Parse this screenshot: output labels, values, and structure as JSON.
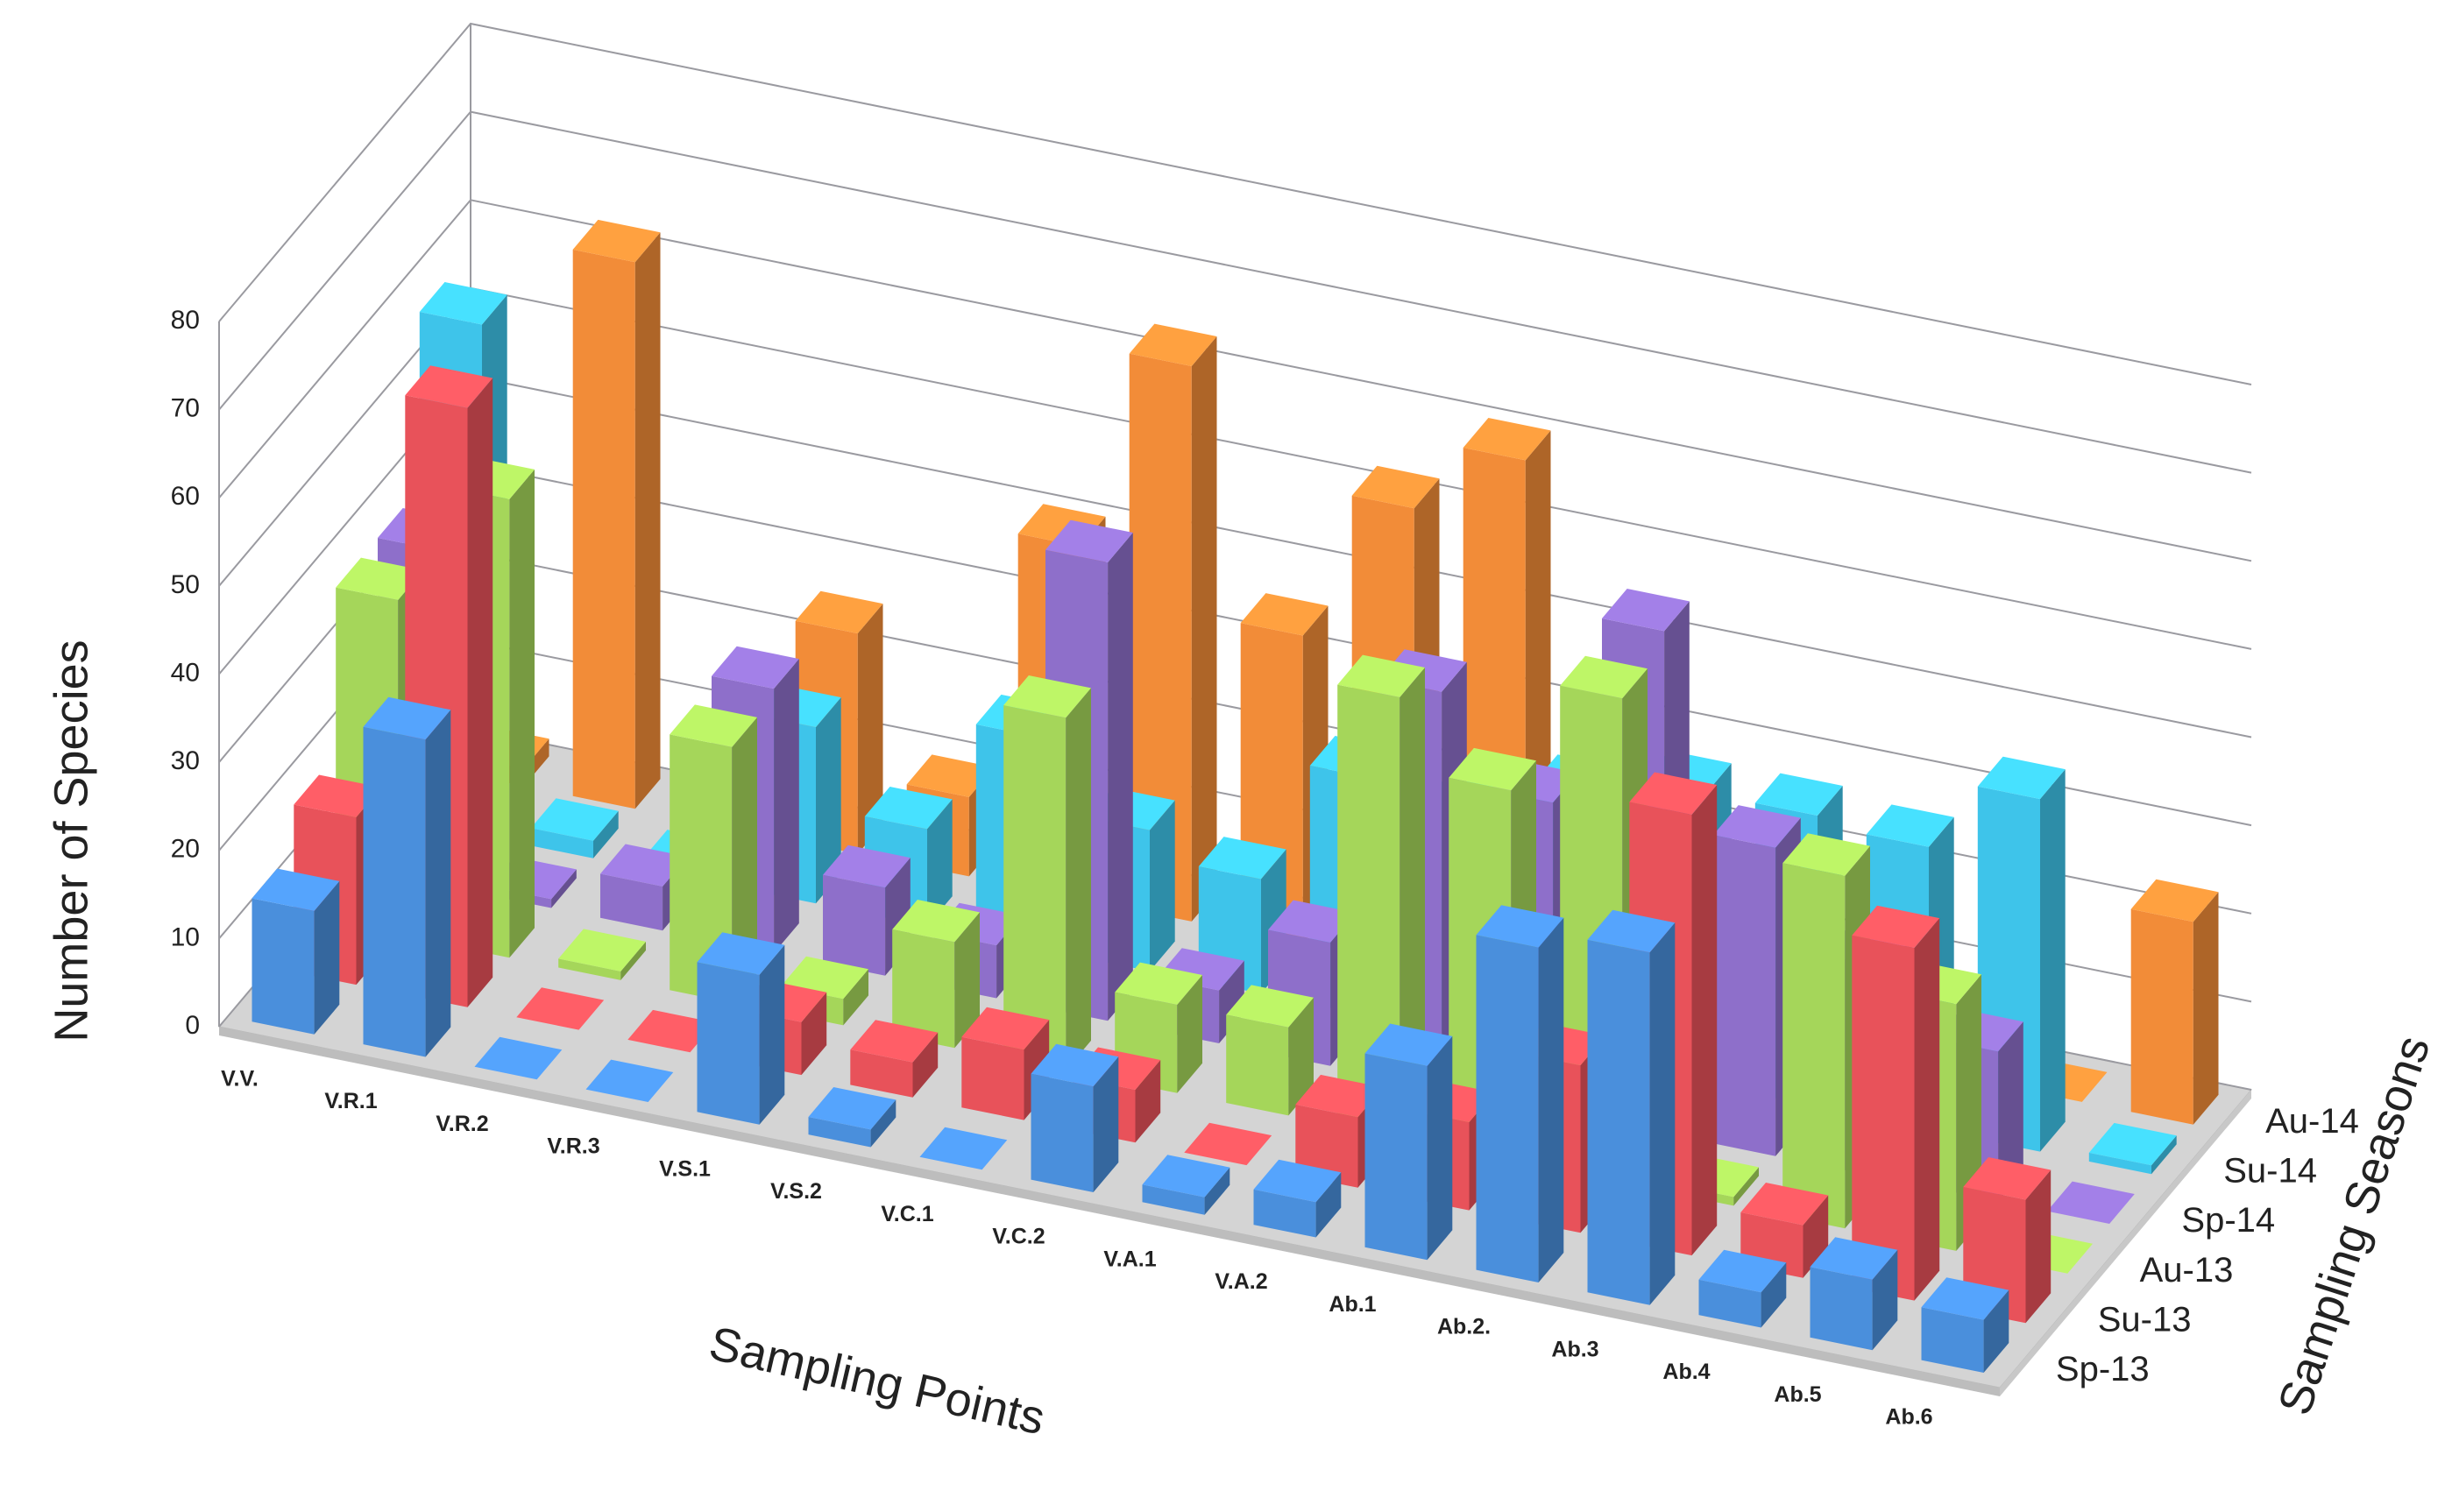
{
  "chart_data": {
    "type": "bar3d",
    "y_label": "Number of Species",
    "x_label": "Sampling Points",
    "z_label": "Sampling Seasons",
    "categories": [
      "V.V.",
      "V.R.1",
      "V.R.2",
      "V.R.3",
      "V.S.1",
      "V.S.2",
      "V.C.1",
      "V.C.2",
      "V.A.1",
      "V.A.2",
      "Ab.1",
      "Ab.2.",
      "Ab.3",
      "Ab.4",
      "Ab.5",
      "Ab.6"
    ],
    "series": [
      {
        "name": "Sp-13",
        "color": "#4a8fdc",
        "values": [
          14,
          36,
          0,
          0,
          17,
          2,
          0,
          12,
          2,
          4,
          22,
          38,
          40,
          4,
          8,
          6
        ]
      },
      {
        "name": "Su-13",
        "color": "#e8525a",
        "values": [
          19,
          68,
          0,
          0,
          6,
          4,
          8,
          6,
          0,
          8,
          10,
          19,
          50,
          6,
          40,
          14
        ]
      },
      {
        "name": "Au-13",
        "color": "#a5d65a",
        "values": [
          38,
          52,
          1,
          29,
          3,
          12,
          40,
          10,
          10,
          50,
          42,
          55,
          1,
          40,
          28,
          0
        ]
      },
      {
        "name": "Sp-14",
        "color": "#8e6fca",
        "values": [
          38,
          1,
          5,
          30,
          10,
          6,
          52,
          6,
          14,
          45,
          35,
          57,
          35,
          24,
          17,
          0
        ]
      },
      {
        "name": "Su-14",
        "color": "#3ec4ea",
        "values": [
          58,
          2,
          1,
          20,
          11,
          24,
          16,
          13,
          27,
          25,
          30,
          33,
          33,
          32,
          40,
          1
        ]
      },
      {
        "name": "Au-14",
        "color": "#f28c38",
        "values": [
          2,
          62,
          5,
          25,
          9,
          40,
          63,
          35,
          52,
          60,
          0,
          0,
          0,
          0,
          0,
          23
        ]
      }
    ],
    "ylim": [
      0,
      80
    ],
    "yticks": [
      0,
      10,
      20,
      30,
      40,
      50,
      60,
      70,
      80
    ],
    "grid": true
  }
}
